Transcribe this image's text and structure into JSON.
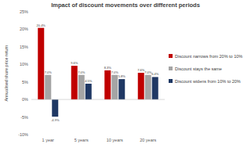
{
  "chart_data": {
    "type": "bar",
    "title": "Impact of discount movements over different periods",
    "y_label": "Annualised share price return",
    "categories": [
      "1 year",
      "5 years",
      "10 years",
      "20 years"
    ],
    "series": [
      {
        "name": "Discount narrows from 20% to 10%",
        "color": "#c00000",
        "values": [
          20.4,
          9.6,
          8.3,
          7.6
        ],
        "value_labels": [
          "20.4%",
          "9.6%",
          "8.3%",
          "7.6%"
        ]
      },
      {
        "name": "Discount stays the same",
        "color": "#a5a5a5",
        "values": [
          7.0,
          7.0,
          7.0,
          7.0
        ],
        "value_labels": [
          "7.0%",
          "7.0%",
          "7.0%",
          "7.0%"
        ]
      },
      {
        "name": "Discount widens from 10% to 20%",
        "color": "#1f3864",
        "values": [
          -4.9,
          4.5,
          5.8,
          6.4
        ],
        "value_labels": [
          "-4.9%",
          "4.5%",
          "5.8%",
          "6.4%"
        ]
      }
    ],
    "ylim": [
      -10,
      25
    ],
    "yticks": [
      {
        "value": -10,
        "label": "-10%"
      },
      {
        "value": -5,
        "label": "-5%"
      },
      {
        "value": 0,
        "label": "0%"
      },
      {
        "value": 5,
        "label": "5%"
      },
      {
        "value": 10,
        "label": "10%"
      },
      {
        "value": 15,
        "label": "15%"
      },
      {
        "value": 20,
        "label": "20%"
      },
      {
        "value": 25,
        "label": "25%"
      }
    ],
    "grid": false,
    "legend": "right",
    "data_labels": true
  }
}
